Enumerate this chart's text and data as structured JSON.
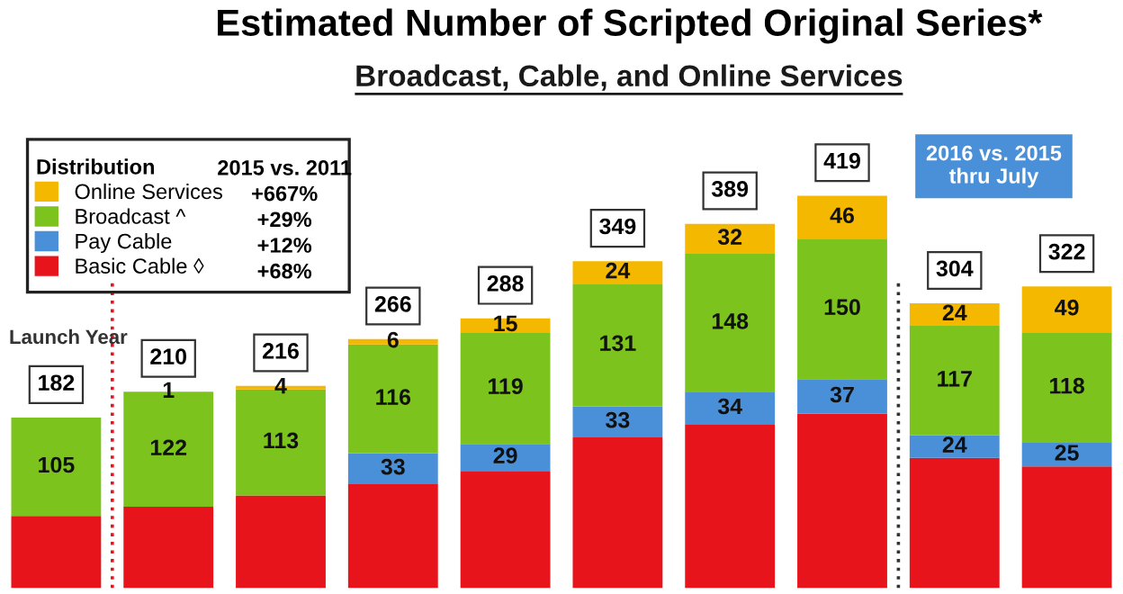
{
  "chart_data": {
    "type": "bar",
    "stacked": true,
    "title": "Estimated Number of Scripted Original Series*",
    "subtitle": "Broadcast, Cable, and Online Services",
    "categories": [
      null,
      null,
      null,
      null,
      null,
      null,
      null,
      null,
      null,
      null
    ],
    "series": [
      {
        "name": "Basic Cable ◊",
        "color": "#e8141c",
        "values": [
          77,
          87,
          99,
          111,
          125,
          161,
          175,
          186,
          139,
          130
        ]
      },
      {
        "name": "Pay Cable",
        "color": "#4a90d9",
        "values": [
          null,
          null,
          null,
          33,
          29,
          33,
          34,
          37,
          24,
          25
        ],
        "value_labels": [
          null,
          null,
          null,
          "33",
          "29",
          "33",
          "34",
          "37",
          "24",
          "25"
        ]
      },
      {
        "name": "Broadcast ^",
        "color": "#7dc31e",
        "values": [
          105,
          122,
          113,
          116,
          119,
          131,
          148,
          150,
          117,
          118
        ],
        "value_labels": [
          "105",
          "122",
          "113",
          "116",
          "119",
          "131",
          "148",
          "150",
          "117",
          "118"
        ]
      },
      {
        "name": "Online Services",
        "color": "#f5b800",
        "values": [
          null,
          1,
          4,
          6,
          15,
          24,
          32,
          46,
          24,
          49
        ],
        "value_labels": [
          null,
          "1",
          "4",
          "6",
          "15",
          "24",
          "32",
          "46",
          "24",
          "49"
        ]
      }
    ],
    "totals": [
      "182",
      "210",
      "216",
      "266",
      "288",
      "349",
      "389",
      "419",
      "304",
      "322"
    ],
    "legend": "top left",
    "legend_title": "Distribution",
    "annotations": [
      "2015 vs. 2011",
      "+667%",
      "+29%",
      "+12%",
      "+68%",
      "Launch Year",
      "2016 vs. 2015\nthru July"
    ]
  }
}
